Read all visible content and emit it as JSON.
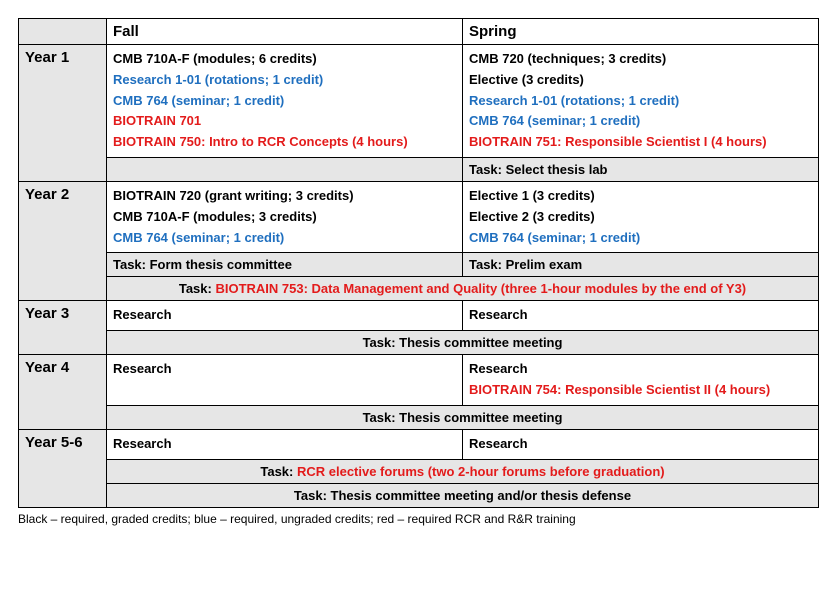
{
  "colors": {
    "black": "#000000",
    "blue": "#1f6fbf",
    "red": "#e31b1b",
    "shade": "#e6e6e6"
  },
  "headers": {
    "blank": "",
    "fall": "Fall",
    "spring": "Spring"
  },
  "years": {
    "y1": {
      "label": "Year 1",
      "fall": [
        {
          "text": "CMB 710A-F (modules; 6 credits)",
          "color": "black"
        },
        {
          "text": "Research 1-01 (rotations; 1 credit)",
          "color": "blue"
        },
        {
          "text": "CMB 764 (seminar; 1 credit)",
          "color": "blue"
        },
        {
          "text": "BIOTRAIN 701",
          "color": "red"
        },
        {
          "text": "BIOTRAIN 750: Intro to RCR Concepts (4 hours)",
          "color": "red"
        }
      ],
      "spring": [
        {
          "text": "CMB 720 (techniques; 3 credits)",
          "color": "black"
        },
        {
          "text": "Elective (3 credits)",
          "color": "black"
        },
        {
          "text": "Research 1-01 (rotations; 1 credit)",
          "color": "blue"
        },
        {
          "text": "CMB 764 (seminar; 1 credit)",
          "color": "blue"
        },
        {
          "text": "BIOTRAIN 751: Responsible Scientist I (4 hours)",
          "color": "red"
        }
      ],
      "task_fall": "",
      "task_spring": "Task: Select thesis lab"
    },
    "y2": {
      "label": "Year 2",
      "fall": [
        {
          "text": "BIOTRAIN 720 (grant writing; 3 credits)",
          "color": "black"
        },
        {
          "text": "CMB 710A-F (modules; 3 credits)",
          "color": "black"
        },
        {
          "text": "CMB 764 (seminar; 1 credit)",
          "color": "blue"
        }
      ],
      "spring": [
        {
          "text": "Elective 1 (3 credits)",
          "color": "black"
        },
        {
          "text": "Elective 2 (3 credits)",
          "color": "black"
        },
        {
          "text": "CMB 764 (seminar; 1 credit)",
          "color": "blue"
        }
      ],
      "task_fall": "Task: Form thesis committee",
      "task_spring": "Task: Prelim exam",
      "span_task_prefix": "Task: ",
      "span_task_red": "BIOTRAIN 753: Data Management and Quality (three 1-hour modules by the end of Y3)"
    },
    "y3": {
      "label": "Year 3",
      "fall": [
        {
          "text": "Research",
          "color": "black"
        }
      ],
      "spring": [
        {
          "text": "Research",
          "color": "black"
        }
      ],
      "span_task": "Task: Thesis committee meeting"
    },
    "y4": {
      "label": "Year 4",
      "fall": [
        {
          "text": "Research",
          "color": "black"
        }
      ],
      "spring": [
        {
          "text": "Research",
          "color": "black"
        },
        {
          "text": "BIOTRAIN 754: Responsible Scientist II (4 hours)",
          "color": "red"
        }
      ],
      "span_task": "Task: Thesis committee meeting"
    },
    "y56": {
      "label": "Year 5-6",
      "fall": [
        {
          "text": "Research",
          "color": "black"
        }
      ],
      "spring": [
        {
          "text": "Research",
          "color": "black"
        }
      ],
      "span_task1_prefix": "Task: ",
      "span_task1_red": "RCR elective forums (two 2-hour forums before graduation)",
      "span_task2": "Task: Thesis committee meeting and/or thesis defense"
    }
  },
  "legend": "Black – required, graded credits; blue – required, ungraded credits; red – required RCR and R&R training"
}
